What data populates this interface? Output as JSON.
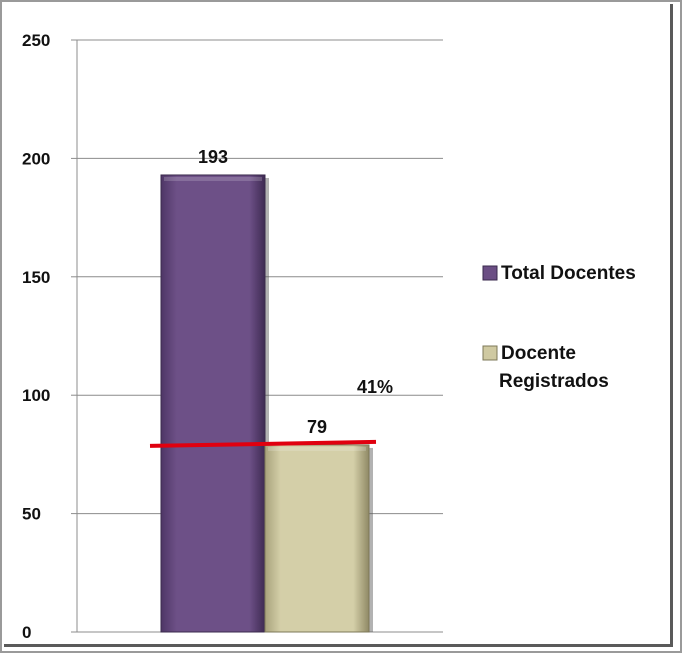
{
  "chart_data": {
    "type": "bar",
    "categories": [
      "Total Docentes",
      "Docente Registrados"
    ],
    "values": [
      193,
      79
    ],
    "data_labels": [
      "193",
      "79"
    ],
    "ylim": [
      0,
      250
    ],
    "yticks": [
      "0",
      "50",
      "100",
      "150",
      "200",
      "250"
    ],
    "grid": true,
    "legend": {
      "position": "right",
      "entries": [
        {
          "name": "Total Docentes",
          "lines": [
            "Total Docentes"
          ],
          "color": "#6b4e84"
        },
        {
          "name": "Docente Registrados",
          "lines": [
            "Docente",
            "Registrados"
          ],
          "color": "#cfc9a1"
        }
      ]
    },
    "annotation": {
      "text": "41%",
      "line_value": 79,
      "line_color": "#e0000f"
    }
  }
}
